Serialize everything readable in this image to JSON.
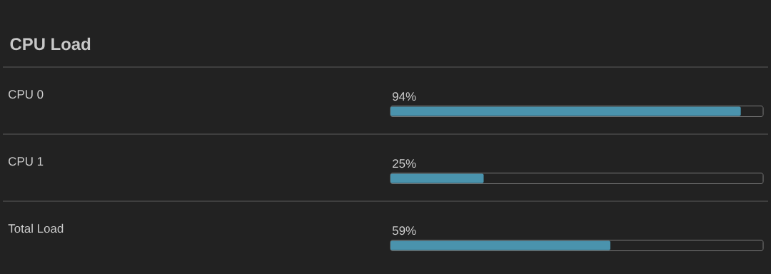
{
  "chart_data": {
    "type": "bar",
    "orientation": "horizontal",
    "title": "CPU Load",
    "categories": [
      "CPU 0",
      "CPU 1",
      "Total Load"
    ],
    "values": [
      94,
      25,
      59
    ],
    "value_labels": [
      "94%",
      "25%",
      "59%"
    ],
    "color": "#4a93ad",
    "xlim": [
      0,
      100
    ],
    "tick_labels": "y"
  }
}
